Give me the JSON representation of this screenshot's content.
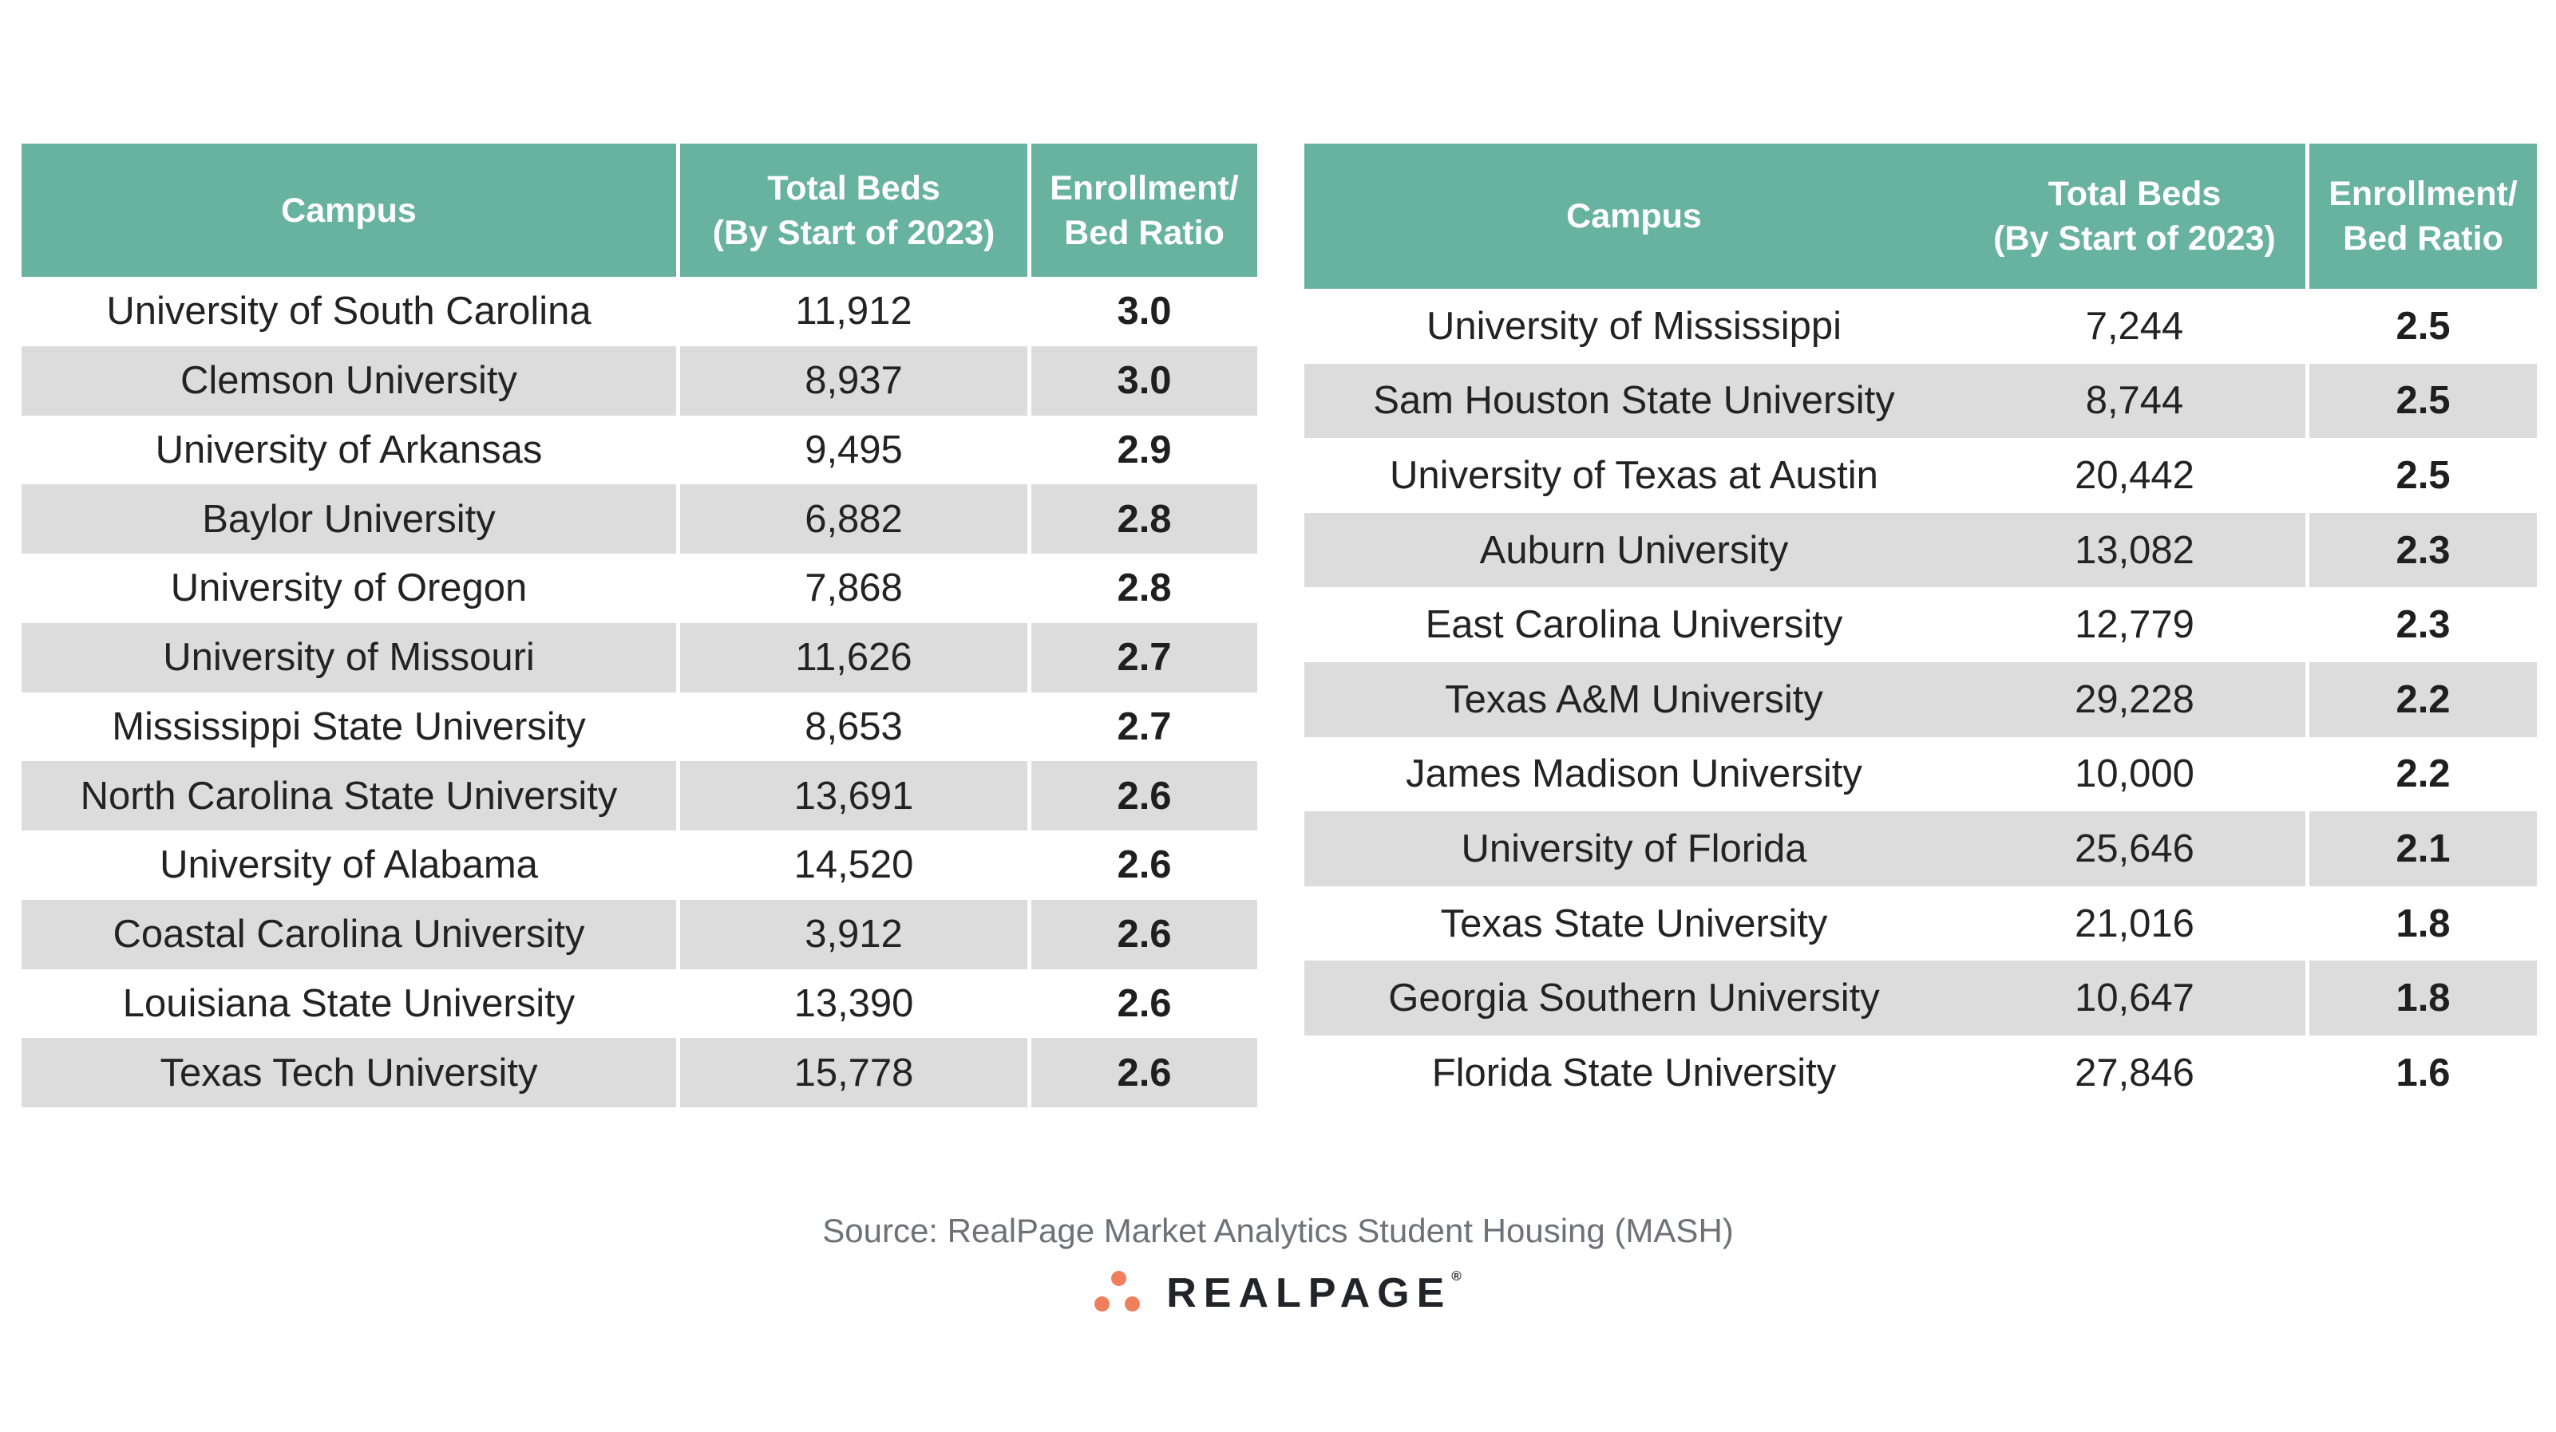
{
  "left_table": {
    "headers": {
      "campus": "Campus",
      "beds_line1": "Total Beds",
      "beds_line2": "(By Start of 2023)",
      "ratio_line1": "Enrollment/",
      "ratio_line2": "Bed Ratio"
    },
    "rows": [
      {
        "campus": "University of South Carolina",
        "beds": "11,912",
        "ratio": "3.0"
      },
      {
        "campus": "Clemson University",
        "beds": "8,937",
        "ratio": "3.0"
      },
      {
        "campus": "University of Arkansas",
        "beds": "9,495",
        "ratio": "2.9"
      },
      {
        "campus": "Baylor University",
        "beds": "6,882",
        "ratio": "2.8"
      },
      {
        "campus": "University of Oregon",
        "beds": "7,868",
        "ratio": "2.8"
      },
      {
        "campus": "University of Missouri",
        "beds": "11,626",
        "ratio": "2.7"
      },
      {
        "campus": "Mississippi State University",
        "beds": "8,653",
        "ratio": "2.7"
      },
      {
        "campus": "North Carolina State University",
        "beds": "13,691",
        "ratio": "2.6"
      },
      {
        "campus": "University of Alabama",
        "beds": "14,520",
        "ratio": "2.6"
      },
      {
        "campus": "Coastal Carolina University",
        "beds": "3,912",
        "ratio": "2.6"
      },
      {
        "campus": "Louisiana State University",
        "beds": "13,390",
        "ratio": "2.6"
      },
      {
        "campus": "Texas Tech University",
        "beds": "15,778",
        "ratio": "2.6"
      }
    ]
  },
  "right_table": {
    "headers": {
      "campus": "Campus",
      "beds_line1": "Total Beds",
      "beds_line2": "(By Start of 2023)",
      "ratio_line1": "Enrollment/",
      "ratio_line2": "Bed Ratio"
    },
    "rows": [
      {
        "campus": "University of Mississippi",
        "beds": "7,244",
        "ratio": "2.5"
      },
      {
        "campus": "Sam Houston State University",
        "beds": "8,744",
        "ratio": "2.5"
      },
      {
        "campus": "University of Texas at Austin",
        "beds": "20,442",
        "ratio": "2.5"
      },
      {
        "campus": "Auburn University",
        "beds": "13,082",
        "ratio": "2.3"
      },
      {
        "campus": "East Carolina University",
        "beds": "12,779",
        "ratio": "2.3"
      },
      {
        "campus": "Texas A&M University",
        "beds": "29,228",
        "ratio": "2.2"
      },
      {
        "campus": "James Madison University",
        "beds": "10,000",
        "ratio": "2.2"
      },
      {
        "campus": "University of Florida",
        "beds": "25,646",
        "ratio": "2.1"
      },
      {
        "campus": "Texas State University",
        "beds": "21,016",
        "ratio": "1.8"
      },
      {
        "campus": "Georgia Southern University",
        "beds": "10,647",
        "ratio": "1.8"
      },
      {
        "campus": "Florida State University",
        "beds": "27,846",
        "ratio": "1.6"
      }
    ]
  },
  "footer": {
    "source": "Source: RealPage Market Analytics Student Housing (MASH)",
    "logo_text": "REALPAGE",
    "logo_registered": "®"
  },
  "colors": {
    "header_green": "#68b2a0",
    "stripe_gray": "#dcdcdc",
    "body_text": "#232323",
    "source_gray": "#6d7278",
    "logo_orange": "#ef7f5c",
    "logo_text_color": "#212529"
  }
}
